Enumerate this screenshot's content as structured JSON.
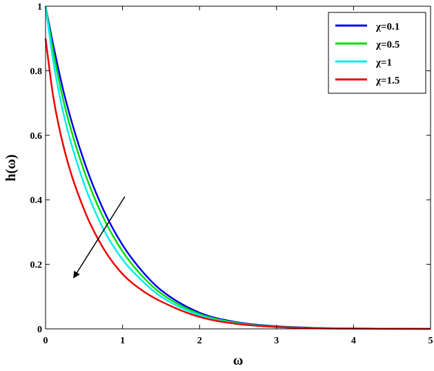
{
  "chart_data": {
    "type": "line",
    "title": "",
    "xlabel": "ω",
    "ylabel": "h(ω)",
    "xlim": [
      0,
      5
    ],
    "ylim": [
      0,
      1
    ],
    "xticks": [
      0,
      1,
      2,
      3,
      4,
      5
    ],
    "yticks": [
      0,
      0.2,
      0.4,
      0.6,
      0.8,
      1
    ],
    "xtick_labels": [
      "0",
      "1",
      "2",
      "3",
      "4",
      "5"
    ],
    "ytick_labels": [
      "0",
      "0.2",
      "0.4",
      "0.6",
      "0.8",
      "1"
    ],
    "grid": false,
    "legend_position": "top-right",
    "series": [
      {
        "name": "χ=0.1",
        "color": "#0000ee",
        "x": [
          0,
          0.1,
          0.25,
          0.5,
          0.75,
          1,
          1.25,
          1.5,
          2,
          2.5,
          3,
          3.5,
          4,
          4.5,
          5
        ],
        "y": [
          1,
          0.88,
          0.72,
          0.52,
          0.37,
          0.26,
          0.18,
          0.12,
          0.05,
          0.02,
          0.008,
          0.003,
          0.001,
          0.0005,
          0.0002
        ]
      },
      {
        "name": "χ=0.5",
        "color": "#00dd00",
        "x": [
          0,
          0.1,
          0.25,
          0.5,
          0.75,
          1,
          1.25,
          1.5,
          2,
          2.5,
          3,
          3.5,
          4,
          4.5,
          5
        ],
        "y": [
          1,
          0.86,
          0.69,
          0.49,
          0.345,
          0.24,
          0.165,
          0.11,
          0.046,
          0.018,
          0.007,
          0.0025,
          0.001,
          0.0004,
          0.0001
        ]
      },
      {
        "name": "χ=1",
        "color": "#00eeee",
        "x": [
          0,
          0.1,
          0.25,
          0.5,
          0.75,
          1,
          1.25,
          1.5,
          2,
          2.5,
          3,
          3.5,
          4,
          4.5,
          5
        ],
        "y": [
          1,
          0.83,
          0.65,
          0.45,
          0.31,
          0.215,
          0.15,
          0.1,
          0.042,
          0.016,
          0.006,
          0.002,
          0.0008,
          0.0003,
          0.0001
        ]
      },
      {
        "name": "χ=1.5",
        "color": "#ee0000",
        "x": [
          0,
          0.1,
          0.25,
          0.5,
          0.75,
          1,
          1.25,
          1.5,
          2,
          2.5,
          3,
          3.5,
          4,
          4.5,
          5
        ],
        "y": [
          0.9,
          0.72,
          0.55,
          0.37,
          0.25,
          0.17,
          0.12,
          0.085,
          0.037,
          0.015,
          0.006,
          0.002,
          0.0008,
          0.0003,
          0.0001
        ]
      }
    ],
    "annotations": [
      {
        "type": "arrow",
        "from": [
          1.03,
          0.41
        ],
        "to": [
          0.37,
          0.16
        ],
        "meaning": "increasing χ"
      }
    ]
  }
}
